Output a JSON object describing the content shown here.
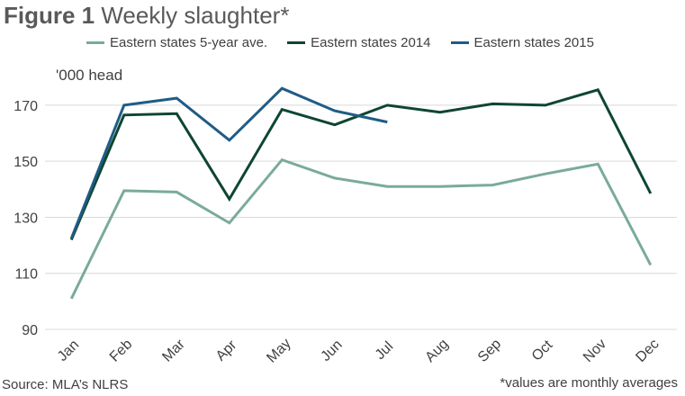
{
  "title_bold": "Figure 1",
  "title_rest": " Weekly slaughter*",
  "unit_label": "'000 head",
  "source": "Source: MLA’s NLRS",
  "note": "*values are monthly averages",
  "chart_data": {
    "type": "line",
    "categories": [
      "Jan",
      "Feb",
      "Mar",
      "Apr",
      "May",
      "Jun",
      "Jul",
      "Aug",
      "Sep",
      "Oct",
      "Nov",
      "Dec"
    ],
    "yticks": [
      90,
      110,
      130,
      150,
      170
    ],
    "ylim": [
      90,
      178
    ],
    "grid": true,
    "legend_position": "top",
    "series": [
      {
        "name": "Eastern states 5-year ave.",
        "color": "#7aab98",
        "values": [
          101,
          139.5,
          139,
          128,
          150.5,
          144,
          141,
          141,
          141.5,
          145.5,
          149,
          113
        ]
      },
      {
        "name": "Eastern states 2014",
        "color": "#0e4630",
        "values": [
          122,
          166.5,
          167,
          136.5,
          168.5,
          163,
          170,
          167.5,
          170.5,
          170,
          175.5,
          138.5
        ]
      },
      {
        "name": "Eastern states 2015",
        "color": "#1f5c86",
        "values": [
          122.5,
          170,
          172.5,
          157.5,
          176,
          168,
          164,
          null,
          null,
          null,
          null,
          null
        ]
      }
    ]
  }
}
